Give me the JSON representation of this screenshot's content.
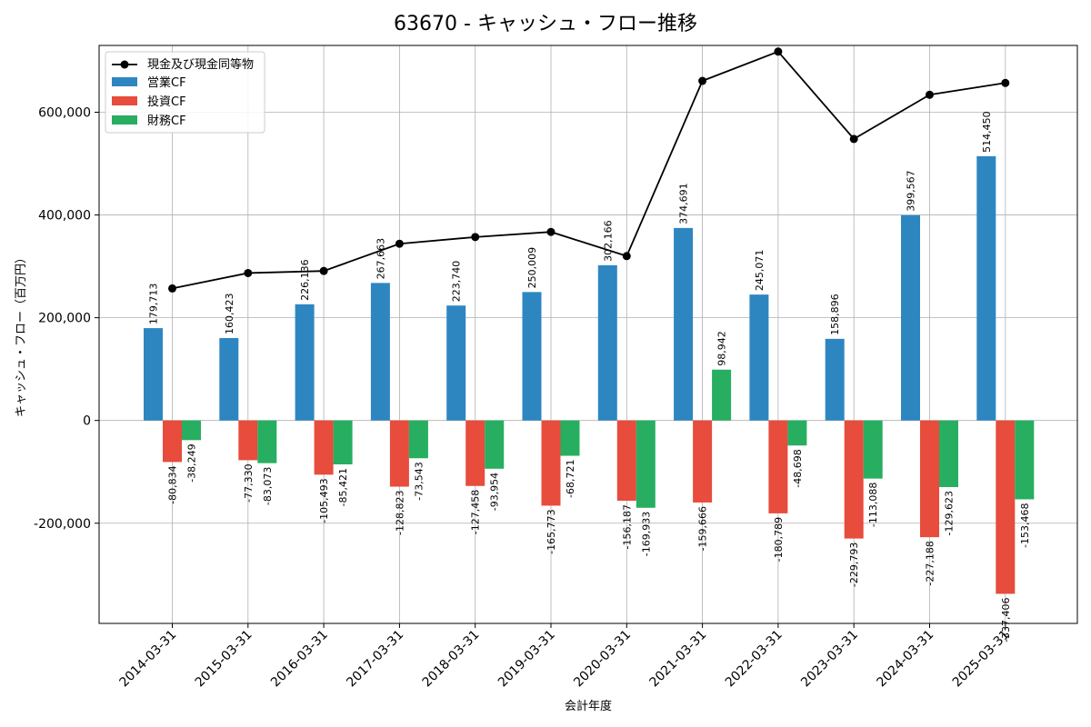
{
  "chart_data": {
    "type": "bar",
    "title": "63670 - キャッシュ・フロー推移",
    "xlabel": "会計年度",
    "ylabel": "キャッシュ・フロー（百万円）",
    "categories": [
      "2014-03-31",
      "2015-03-31",
      "2016-03-31",
      "2017-03-31",
      "2018-03-31",
      "2019-03-31",
      "2020-03-31",
      "2021-03-31",
      "2022-03-31",
      "2023-03-31",
      "2024-03-31",
      "2025-03-31"
    ],
    "series": [
      {
        "name": "営業CF",
        "color": "#2e86c1",
        "values": [
          179713,
          160423,
          226136,
          267663,
          223740,
          250009,
          302166,
          374691,
          245071,
          158896,
          399567,
          514450
        ],
        "labels": [
          "179,713",
          "160,423",
          "226,136",
          "267,663",
          "223,740",
          "250,009",
          "302,166",
          "374,691",
          "245,071",
          "158,896",
          "399,567",
          "514,450"
        ]
      },
      {
        "name": "投資CF",
        "color": "#e74c3c",
        "values": [
          -80834,
          -77330,
          -105493,
          -128823,
          -127458,
          -165773,
          -156187,
          -159666,
          -180789,
          -229793,
          -227188,
          -337406
        ],
        "labels": [
          "-80,834",
          "-77,330",
          "-105,493",
          "-128,823",
          "-127,458",
          "-165,773",
          "-156,187",
          "-159,666",
          "-180,789",
          "-229,793",
          "-227,188",
          "-337,406"
        ]
      },
      {
        "name": "財務CF",
        "color": "#27ae60",
        "values": [
          -38249,
          -83073,
          -85421,
          -73543,
          -93954,
          -68721,
          -169933,
          98942,
          -48698,
          -113088,
          -129623,
          -153468
        ],
        "labels": [
          "-38,249",
          "-83,073",
          "-85,421",
          "-73,543",
          "-93,954",
          "-68,721",
          "-169,933",
          "98,942",
          "-48,698",
          "-113,088",
          "-129,623",
          "-153,468"
        ]
      }
    ],
    "line_series": {
      "name": "現金及び現金同等物",
      "color": "#000000",
      "values": [
        257000,
        287000,
        291000,
        344000,
        357000,
        367000,
        320000,
        661000,
        718000,
        548000,
        634000,
        657000
      ]
    },
    "ylim": [
      -395000,
      730000
    ],
    "yticks": [
      -200000,
      0,
      200000,
      400000,
      600000
    ],
    "ytick_labels": [
      "-200,000",
      "0",
      "200,000",
      "400,000",
      "600,000"
    ],
    "grid": true,
    "legend_position": "top-left"
  }
}
